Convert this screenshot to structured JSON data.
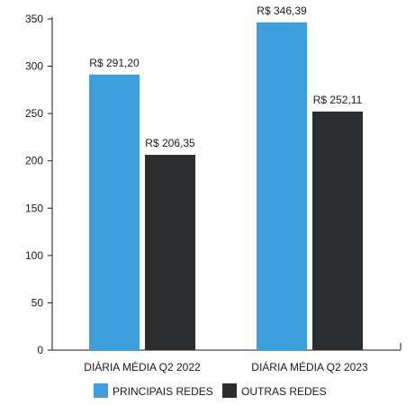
{
  "chart_data": {
    "type": "bar",
    "categories": [
      "DIÁRIA MÉDIA Q2 2022",
      "DIÁRIA MÉDIA Q2 2023"
    ],
    "series": [
      {
        "name": "PRINCIPAIS REDES",
        "color": "#3d9fdb",
        "values": [
          291.2,
          346.39
        ],
        "labels": [
          "R$ 291,20",
          "R$ 346,39"
        ]
      },
      {
        "name": "OUTRAS REDES",
        "color": "#2b2d2f",
        "values": [
          206.35,
          252.11
        ],
        "labels": [
          "R$ 206,35",
          "R$ 252,11"
        ]
      }
    ],
    "ylim": [
      0,
      350
    ],
    "yticks": [
      0,
      50,
      100,
      150,
      200,
      250,
      300,
      350
    ],
    "grid": false,
    "legend": "bottom-center"
  }
}
